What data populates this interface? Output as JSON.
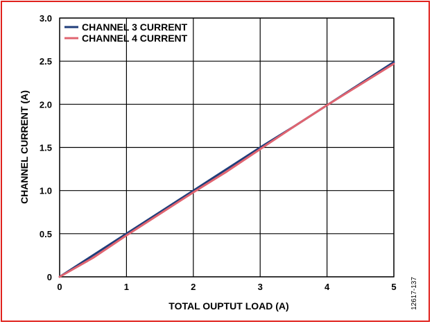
{
  "figure_id": "12617-137",
  "chart_data": {
    "type": "line",
    "xlabel": "TOTAL OUPTUT LOAD (A)",
    "ylabel": "CHANNEL CURRENT (A)",
    "xlim": [
      0,
      5
    ],
    "ylim": [
      0,
      3.0
    ],
    "x_ticks": [
      "0",
      "1",
      "2",
      "3",
      "4",
      "5"
    ],
    "y_ticks": [
      "0",
      "0.5",
      "1.0",
      "1.5",
      "2.0",
      "2.5",
      "3.0"
    ],
    "grid": true,
    "legend_placement": "top-left",
    "series": [
      {
        "name": "CHANNEL 3 CURRENT",
        "color": "#1f3d7a",
        "x": [
          0,
          0.5,
          1,
          1.5,
          2,
          2.5,
          3,
          3.5,
          4,
          4.5,
          5
        ],
        "y": [
          0,
          0.25,
          0.5,
          0.75,
          1.0,
          1.25,
          1.5,
          1.74,
          1.99,
          2.24,
          2.49
        ]
      },
      {
        "name": "CHANNEL 4 CURRENT",
        "color": "#e06470",
        "x": [
          0,
          0.5,
          1,
          1.5,
          2,
          2.5,
          3,
          3.5,
          4,
          4.5,
          5
        ],
        "y": [
          0,
          0.22,
          0.48,
          0.73,
          0.98,
          1.22,
          1.48,
          1.74,
          1.99,
          2.23,
          2.47
        ]
      }
    ]
  }
}
